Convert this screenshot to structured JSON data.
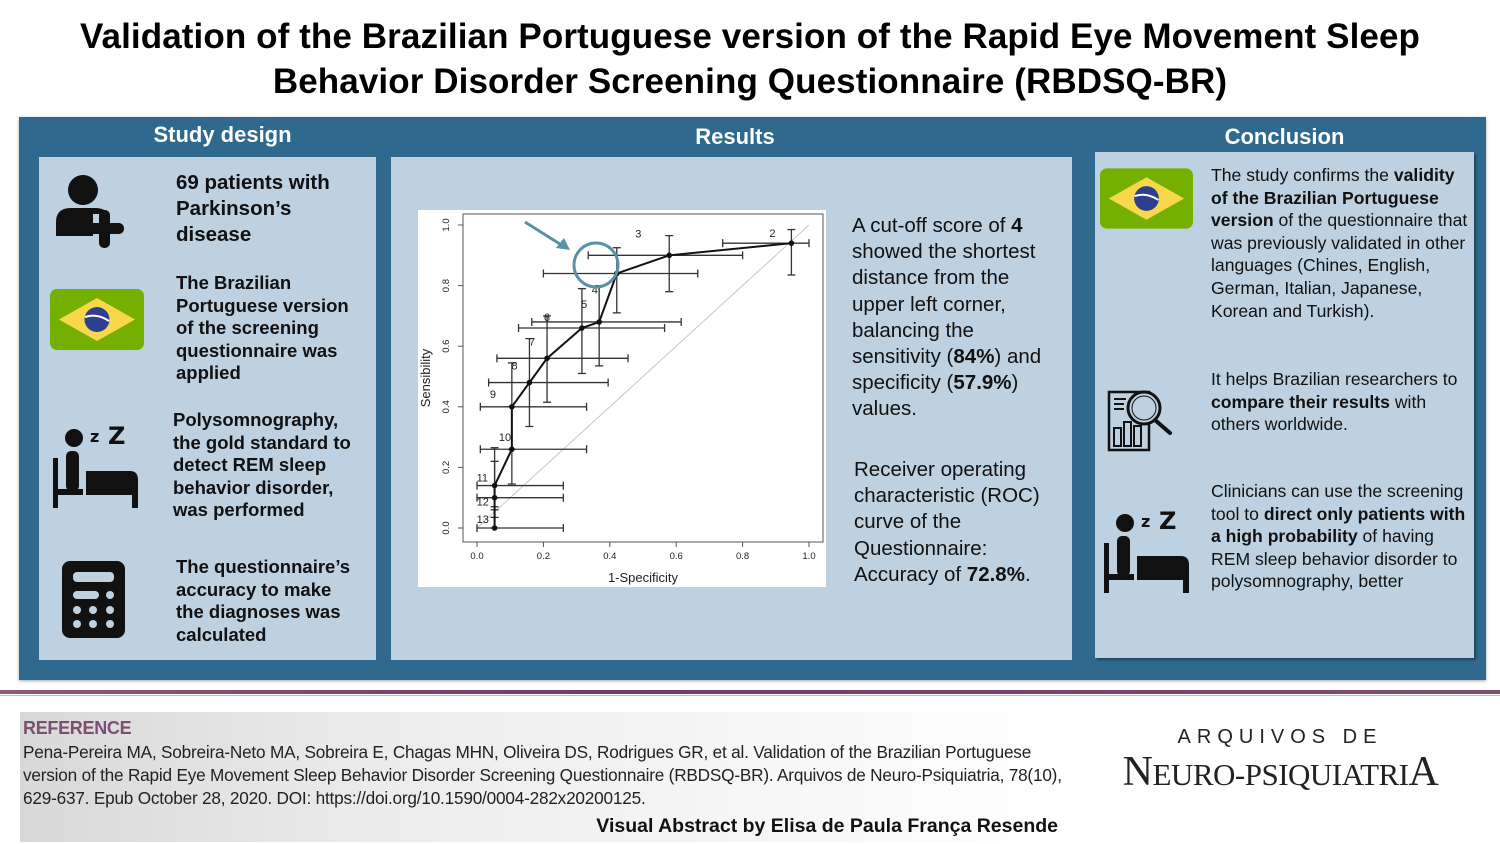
{
  "title": {
    "line1": "Validation of the Brazilian Portuguese version of the Rapid Eye Movement Sleep",
    "line2": "Behavior Disorder Screening Questionnaire (RBDSQ-BR)"
  },
  "colors": {
    "outer_panel": "#2f6a8e",
    "inner_panel": "#bdd1e0",
    "flag_green": "#75b000",
    "flag_yellow": "#f7d84a",
    "flag_blue": "#2f3f8f",
    "highlight_circle": "#5a90a8",
    "reference_heading": "#7b4f73",
    "divider": "#6e3c65"
  },
  "study_design": {
    "heading": "Study design",
    "items": [
      {
        "icon": "add-patient-icon",
        "text": "69 patients with Parkinson’s disease"
      },
      {
        "icon": "brazil-flag-icon",
        "text": "The Brazilian Portuguese version of the screening questionnaire was applied"
      },
      {
        "icon": "sleep-in-bed-icon",
        "text": "Polysomnography, the gold standard to detect REM sleep behavior disorder, was performed"
      },
      {
        "icon": "calculator-icon",
        "text": "The questionnaire’s accuracy to make the diagnoses was calculated"
      }
    ],
    "lines": {
      "i0": [
        "69 patients with",
        "Parkinson’s",
        "disease"
      ],
      "i1": [
        "The Brazilian",
        "Portuguese version",
        "of the screening",
        "questionnaire was",
        "applied"
      ],
      "i2": [
        "Polysomnography,",
        "the gold standard to",
        "detect REM sleep",
        "behavior disorder,",
        "was performed"
      ],
      "i3": [
        "The questionnaire’s",
        "accuracy to make",
        "the diagnoses was",
        "calculated"
      ]
    }
  },
  "results": {
    "heading": "Results",
    "cutoff": {
      "p1": "A cut-off score of ",
      "score": "4",
      "p2": " showed the shortest distance from the upper left corner, balancing the sensitivity (",
      "sensitivity": "84%",
      "p3": ") and specificity (",
      "specificity": "57.9%",
      "p4": ") values."
    },
    "roc": {
      "p1": "Receiver operating characteristic (ROC) curve of the Questionnaire: Accuracy of ",
      "accuracy": "72.8%",
      "p2": "."
    }
  },
  "conclusion": {
    "heading": "Conclusion",
    "item1": {
      "icon": "brazil-flag-icon",
      "pre": "The study confirms the ",
      "bold": "validity of the Brazilian Portuguese version",
      "post": " of the questionnaire that was previously validated in other languages (Chines, English, German, Italian, Japanese, Korean and Turkish)."
    },
    "item2": {
      "icon": "research-analysis-icon",
      "pre": "It helps Brazilian researchers to ",
      "bold": "compare their results",
      "post": " with others worldwide."
    },
    "item3": {
      "icon": "sleep-in-bed-icon",
      "pre": "Clinicians can use the screening tool to ",
      "bold": "direct only patients with a high probability",
      "post": " of having REM sleep behavior disorder to polysomnography, better"
    }
  },
  "reference": {
    "heading": "REFERENCE",
    "citation": "Pena-Pereira MA, Sobreira-Neto MA, Sobreira E, Chagas MHN, Oliveira DS, Rodrigues GR, et al. Validation of the Brazilian Portuguese version of the Rapid Eye Movement Sleep Behavior Disorder Screening Questionnaire (RBDSQ-BR). Arquivos de Neuro-Psiquiatria, 78(10), 629-637. Epub October 28, 2020. DOI: https://doi.org/10.1590/0004-282x20200125.",
    "author_credit": "Visual Abstract by Elisa de Paula França Resende"
  },
  "journal_logo": {
    "top": "ARQUIVOS DE",
    "main_N": "N",
    "main_mid": "EURO-PSIQUIATRI",
    "main_A": "A"
  },
  "chart_data": {
    "type": "line",
    "title": "",
    "xlabel": "1-Specificity",
    "ylabel": "Sensibility",
    "xlim": [
      0,
      1
    ],
    "ylim": [
      0,
      1
    ],
    "x_ticks": [
      "0.0",
      "0.2",
      "0.4",
      "0.6",
      "0.8",
      "1.0"
    ],
    "y_ticks": [
      "0.0",
      "0.2",
      "0.4",
      "0.6",
      "0.8",
      "1.0"
    ],
    "grid": false,
    "reference_line": "diagonal y=x (light gray)",
    "highlighted_point": "4",
    "points": [
      {
        "label": "2",
        "x": 0.947,
        "y": 0.94,
        "x_lo": 0.74,
        "x_hi": 1.0,
        "y_lo": 0.835,
        "y_hi": 0.985
      },
      {
        "label": "3",
        "x": 0.579,
        "y": 0.9,
        "x_lo": 0.335,
        "x_hi": 0.8,
        "y_lo": 0.78,
        "y_hi": 0.965
      },
      {
        "label": "4",
        "x": 0.421,
        "y": 0.84,
        "x_lo": 0.2,
        "x_hi": 0.665,
        "y_lo": 0.71,
        "y_hi": 0.925
      },
      {
        "label": "5",
        "x": 0.368,
        "y": 0.68,
        "x_lo": 0.165,
        "x_hi": 0.615,
        "y_lo": 0.535,
        "y_hi": 0.8
      },
      {
        "label": "6",
        "x": 0.316,
        "y": 0.66,
        "x_lo": 0.125,
        "x_hi": 0.565,
        "y_lo": 0.51,
        "y_hi": 0.79
      },
      {
        "label": "7",
        "x": 0.211,
        "y": 0.56,
        "x_lo": 0.06,
        "x_hi": 0.455,
        "y_lo": 0.415,
        "y_hi": 0.7
      },
      {
        "label": "8",
        "x": 0.158,
        "y": 0.48,
        "x_lo": 0.035,
        "x_hi": 0.395,
        "y_lo": 0.335,
        "y_hi": 0.625
      },
      {
        "label": "9",
        "x": 0.105,
        "y": 0.4,
        "x_lo": 0.01,
        "x_hi": 0.33,
        "y_lo": 0.26,
        "y_hi": 0.545
      },
      {
        "label": "10",
        "x": 0.105,
        "y": 0.26,
        "x_lo": 0.01,
        "x_hi": 0.33,
        "y_lo": 0.145,
        "y_hi": 0.4
      },
      {
        "label": "11",
        "x": 0.053,
        "y": 0.14,
        "x_lo": 0.0,
        "x_hi": 0.26,
        "y_lo": 0.06,
        "y_hi": 0.265
      },
      {
        "label": "12",
        "x": 0.053,
        "y": 0.1,
        "x_lo": 0.0,
        "x_hi": 0.26,
        "y_lo": 0.035,
        "y_hi": 0.22
      },
      {
        "label": "13",
        "x": 0.053,
        "y": 0.0,
        "x_lo": 0.0,
        "x_hi": 0.26,
        "y_lo": 0.0,
        "y_hi": 0.07
      }
    ]
  }
}
